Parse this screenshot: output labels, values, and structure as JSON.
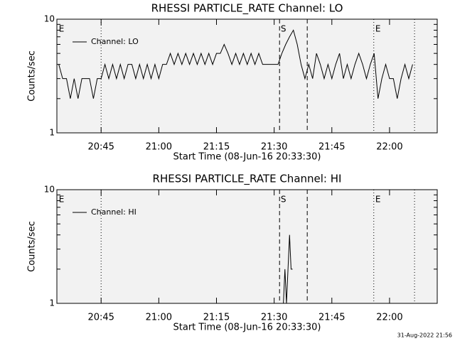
{
  "chart_data": [
    {
      "type": "line",
      "title": "RHESSI PARTICLE_RATE Channel: LO",
      "xlabel": "Start Time (08-Jun-16 20:33:30)",
      "ylabel": "Counts/sec",
      "ylog": true,
      "xlim": [
        1233.5,
        1332.4
      ],
      "ylim": [
        1,
        10
      ],
      "xticks": [
        {
          "value": 1245,
          "label": "20:45"
        },
        {
          "value": 1260,
          "label": "21:00"
        },
        {
          "value": 1275,
          "label": "21:15"
        },
        {
          "value": 1290,
          "label": "21:30"
        },
        {
          "value": 1305,
          "label": "21:45"
        },
        {
          "value": 1320,
          "label": "22:00"
        }
      ],
      "yticks": [
        1,
        10
      ],
      "yminorticks": [
        2,
        3,
        4,
        5,
        6,
        7,
        8,
        9
      ],
      "vlines": [
        {
          "x": 1245,
          "style": "dotted"
        },
        {
          "x": 1291.4,
          "style": "dashed"
        },
        {
          "x": 1298.6,
          "style": "dashed"
        },
        {
          "x": 1315.9,
          "style": "dotted"
        },
        {
          "x": 1326.5,
          "style": "dotted"
        }
      ],
      "annotations": [
        {
          "text": "E",
          "x": 1234
        },
        {
          "text": "S",
          "x": 1291.7
        },
        {
          "text": "E",
          "x": 1316.3
        }
      ],
      "x": [
        1234,
        1235,
        1236,
        1237,
        1238,
        1239,
        1240,
        1241,
        1242,
        1243,
        1244,
        1245,
        1246,
        1247,
        1248,
        1249,
        1250,
        1251,
        1252,
        1253,
        1254,
        1255,
        1256,
        1257,
        1258,
        1259,
        1260,
        1261,
        1262,
        1263,
        1264,
        1265,
        1266,
        1267,
        1268,
        1269,
        1270,
        1271,
        1272,
        1273,
        1274,
        1275,
        1276,
        1277,
        1278,
        1279,
        1280,
        1281,
        1282,
        1283,
        1284,
        1285,
        1286,
        1287,
        1288,
        1289,
        1290,
        1291,
        1292,
        1293,
        1294,
        1295,
        1296,
        1297,
        1298,
        1299,
        1300,
        1301,
        1302,
        1303,
        1304,
        1305,
        1306,
        1307,
        1308,
        1309,
        1310,
        1311,
        1312,
        1313,
        1314,
        1315,
        1316,
        1317,
        1318,
        1319,
        1320,
        1321,
        1322,
        1323,
        1324,
        1325,
        1326
      ],
      "series": [
        {
          "name": "Channel: LO",
          "color": "#000000",
          "values": [
            4,
            3,
            3,
            2,
            3,
            2,
            3,
            3,
            3,
            2,
            3,
            3,
            4,
            3,
            4,
            3,
            4,
            3,
            4,
            4,
            3,
            4,
            3,
            4,
            3,
            4,
            3,
            4,
            4,
            5,
            4,
            5,
            4,
            5,
            4,
            5,
            4,
            5,
            4,
            5,
            4,
            5,
            5,
            6,
            5,
            4,
            5,
            4,
            5,
            4,
            5,
            4,
            5,
            4,
            4,
            4,
            4,
            4,
            5,
            6,
            7,
            8,
            6,
            4,
            3,
            4,
            3,
            5,
            4,
            3,
            4,
            3,
            4,
            5,
            3,
            4,
            3,
            4,
            5,
            4,
            3,
            4,
            5,
            2,
            3,
            4,
            3,
            3,
            2,
            3,
            4,
            3,
            4
          ]
        }
      ]
    },
    {
      "type": "line",
      "title": "RHESSI PARTICLE_RATE Channel: HI",
      "xlabel": "Start Time (08-Jun-16 20:33:30)",
      "ylabel": "Counts/sec",
      "ylog": true,
      "xlim": [
        1233.5,
        1332.4
      ],
      "ylim": [
        1,
        10
      ],
      "xticks": [
        {
          "value": 1245,
          "label": "20:45"
        },
        {
          "value": 1260,
          "label": "21:00"
        },
        {
          "value": 1275,
          "label": "21:15"
        },
        {
          "value": 1290,
          "label": "21:30"
        },
        {
          "value": 1305,
          "label": "21:45"
        },
        {
          "value": 1320,
          "label": "22:00"
        }
      ],
      "yticks": [
        1,
        10
      ],
      "yminorticks": [
        2,
        3,
        4,
        5,
        6,
        7,
        8,
        9
      ],
      "vlines": [
        {
          "x": 1245,
          "style": "dotted"
        },
        {
          "x": 1291.4,
          "style": "dashed"
        },
        {
          "x": 1298.6,
          "style": "dashed"
        },
        {
          "x": 1315.9,
          "style": "dotted"
        },
        {
          "x": 1326.5,
          "style": "dotted"
        }
      ],
      "annotations": [
        {
          "text": "E",
          "x": 1234
        },
        {
          "text": "S",
          "x": 1291.7
        },
        {
          "text": "E",
          "x": 1316.3
        }
      ],
      "x": [
        1292.4,
        1292.8,
        1293.2,
        1293.6,
        1294,
        1294.4,
        1294.8
      ],
      "series": [
        {
          "name": "Channel: HI",
          "color": "#000000",
          "values": [
            1,
            2,
            1,
            2,
            4,
            2,
            2
          ]
        }
      ]
    }
  ],
  "footer": "31-Aug-2022 21:56"
}
